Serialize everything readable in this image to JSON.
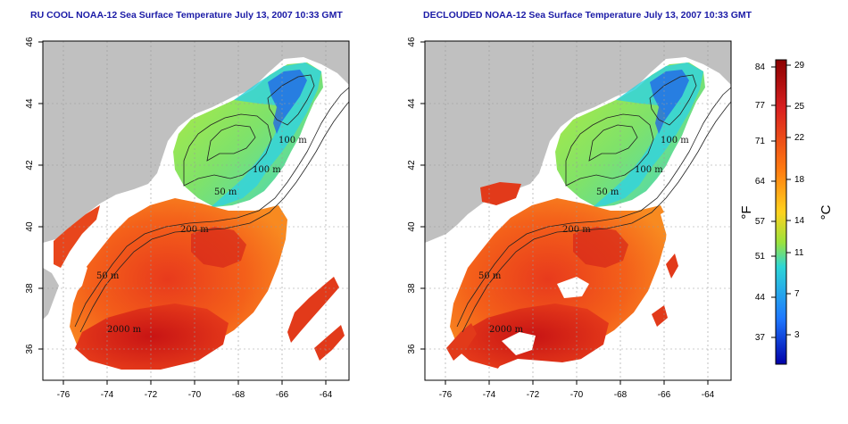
{
  "titles": {
    "left": "RU COOL NOAA-12 Sea Surface Temperature July 13, 2007 10:33 GMT",
    "right": "DECLOUDED NOAA-12 Sea Surface Temperature July 13, 2007 10:33 GMT"
  },
  "axes": {
    "lon_ticks": [
      "-76",
      "-74",
      "-72",
      "-70",
      "-68",
      "-66",
      "-64"
    ],
    "lat_ticks": [
      "36",
      "38",
      "40",
      "42",
      "44",
      "46"
    ]
  },
  "contour_labels": {
    "left": [
      "100 m",
      "100 m",
      "50 m",
      "200 m",
      "50 m",
      "2000 m"
    ],
    "right": [
      "100 m",
      "100 m",
      "50 m",
      "200 m",
      "50 m",
      "2000 m"
    ]
  },
  "colorbar": {
    "fahrenheit_ticks": [
      "84",
      "77",
      "71",
      "64",
      "57",
      "51",
      "44",
      "37"
    ],
    "celsius_ticks": [
      "29",
      "25",
      "22",
      "18",
      "14",
      "11",
      "7",
      "3"
    ],
    "fahrenheit_unit": "°F",
    "celsius_unit": "°C",
    "colors": [
      "#8b0000",
      "#d92020",
      "#ff7a10",
      "#ffd21e",
      "#9be23c",
      "#2dd6d6",
      "#1e78ff",
      "#0000a8"
    ]
  },
  "legend_colors": {
    "land": "#c0c0c0",
    "cloud": "#ffffff"
  }
}
